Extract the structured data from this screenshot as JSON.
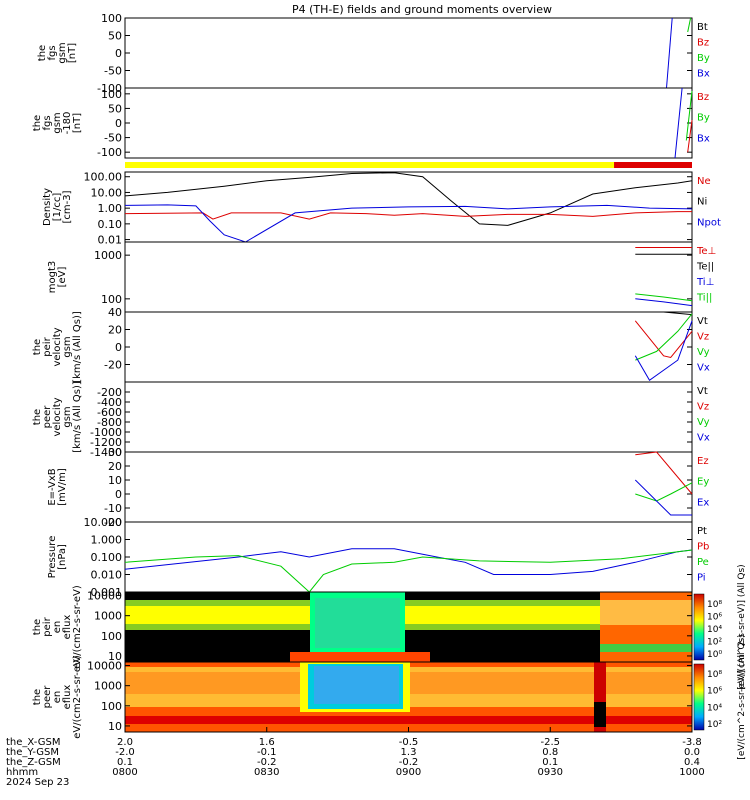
{
  "title": "P4 (TH-E) fields and ground moments overview",
  "colors": {
    "black": "#000000",
    "red": "#dd0000",
    "green": "#00cc00",
    "blue": "#0000dd",
    "yellow": "#ffff00",
    "bar_red": "#dd0000"
  },
  "chart_data": [
    {
      "type": "line",
      "panel": "fgs-gsm",
      "ylabel": [
        "the",
        "fgs",
        "gsm",
        "[nT]"
      ],
      "ylim": [
        -100,
        100
      ],
      "ticks": [
        "100",
        "50",
        "0",
        "-50",
        "-100"
      ],
      "legend": [
        {
          "name": "Bt",
          "color": "black"
        },
        {
          "name": "Bz",
          "color": "red"
        },
        {
          "name": "By",
          "color": "green"
        },
        {
          "name": "Bx",
          "color": "blue"
        }
      ],
      "series": [
        {
          "name": "Bx",
          "color": "blue",
          "x": [
            3.82,
            3.86
          ],
          "y": [
            -100,
            100
          ]
        },
        {
          "name": "By",
          "color": "green",
          "x": [
            3.97,
            3.99
          ],
          "y": [
            60,
            100
          ]
        }
      ]
    },
    {
      "type": "line",
      "panel": "fgs-gsm-dsl",
      "ylabel": [
        "the",
        "fgs",
        "gsm",
        "-180",
        "[nT]"
      ],
      "ylim": [
        -120,
        120
      ],
      "ticks": [
        "100",
        "50",
        "0",
        "-50",
        "-100"
      ],
      "legend": [
        {
          "name": "Bz",
          "color": "red"
        },
        {
          "name": "By",
          "color": "green"
        },
        {
          "name": "Bx",
          "color": "blue"
        }
      ],
      "series": [
        {
          "name": "Bx",
          "color": "blue",
          "x": [
            3.88,
            3.93
          ],
          "y": [
            -120,
            120
          ]
        },
        {
          "name": "Bz",
          "color": "red",
          "x": [
            3.97,
            4.0
          ],
          "y": [
            -100,
            10
          ]
        },
        {
          "name": "By",
          "color": "green",
          "x": [
            3.96,
            4.0
          ],
          "y": [
            -60,
            110
          ]
        }
      ]
    },
    {
      "type": "bar",
      "panel": "mode-bar",
      "segments": [
        {
          "from": 0,
          "to": 3.45,
          "color": "yellow"
        },
        {
          "from": 3.45,
          "to": 4.0,
          "color": "bar_red"
        }
      ]
    },
    {
      "type": "line",
      "panel": "density",
      "ylabel": [
        "Density",
        "[1/cc]",
        "[cm-3]"
      ],
      "scale": "log",
      "ylim": [
        0.007,
        200
      ],
      "ticks": [
        "100.00",
        "10.00",
        "1.00",
        "0.10",
        "0.01"
      ],
      "legend": [
        {
          "name": "Ne",
          "color": "red"
        },
        {
          "name": "Ni",
          "color": "black"
        },
        {
          "name": "Npot",
          "color": "blue"
        }
      ],
      "series": [
        {
          "name": "Ni",
          "color": "black",
          "x": [
            0,
            0.3,
            0.7,
            1.0,
            1.3,
            1.6,
            1.9,
            2.1,
            2.3,
            2.5,
            2.7,
            3.0,
            3.3,
            3.6,
            3.9,
            4.0
          ],
          "y": [
            6,
            10,
            25,
            55,
            90,
            160,
            180,
            100,
            3,
            0.1,
            0.08,
            0.5,
            8,
            20,
            40,
            55
          ]
        },
        {
          "name": "Ne",
          "color": "red",
          "x": [
            0,
            0.55,
            0.62,
            0.75,
            1.1,
            1.3,
            1.45,
            1.7,
            1.9,
            2.1,
            2.4,
            2.7,
            3.0,
            3.3,
            3.6,
            3.9,
            4.0
          ],
          "y": [
            0.45,
            0.5,
            0.2,
            0.5,
            0.5,
            0.2,
            0.5,
            0.45,
            0.35,
            0.45,
            0.3,
            0.4,
            0.4,
            0.3,
            0.5,
            0.6,
            0.6
          ]
        },
        {
          "name": "Npot",
          "color": "blue",
          "x": [
            0,
            0.3,
            0.5,
            0.6,
            0.7,
            0.85,
            1.2,
            1.6,
            2.0,
            2.4,
            2.7,
            3.0,
            3.4,
            3.7,
            4.0
          ],
          "y": [
            1.5,
            1.6,
            1.4,
            0.15,
            0.02,
            0.007,
            0.5,
            1.0,
            1.2,
            1.3,
            0.9,
            1.2,
            1.5,
            1.0,
            0.9
          ]
        }
      ]
    },
    {
      "type": "line",
      "panel": "temperature",
      "ylabel": [
        "mogt3",
        "[eV]"
      ],
      "scale": "log",
      "ylim": [
        50,
        2000
      ],
      "ticks": [
        "1000",
        "100"
      ],
      "legend": [
        {
          "name": "Te⊥",
          "color": "red"
        },
        {
          "name": "Te||",
          "color": "black"
        },
        {
          "name": "Ti⊥",
          "color": "blue"
        },
        {
          "name": "Ti||",
          "color": "green"
        }
      ],
      "series": [
        {
          "name": "Te⊥",
          "color": "red",
          "x": [
            3.6,
            4.0
          ],
          "y": [
            1500,
            1500
          ]
        },
        {
          "name": "Te||",
          "color": "black",
          "x": [
            3.6,
            4.0
          ],
          "y": [
            1050,
            1050
          ]
        },
        {
          "name": "Ti||",
          "color": "green",
          "x": [
            3.6,
            3.8,
            4.0
          ],
          "y": [
            130,
            110,
            90
          ]
        },
        {
          "name": "Ti⊥",
          "color": "blue",
          "x": [
            3.6,
            3.8,
            4.0
          ],
          "y": [
            100,
            85,
            70
          ]
        }
      ]
    },
    {
      "type": "line",
      "panel": "peir-velocity",
      "ylabel": [
        "the",
        "peir",
        "velocity",
        "gsm",
        "[km/s (All Qs)]"
      ],
      "ylim": [
        -40,
        40
      ],
      "ticks": [
        "40",
        "20",
        "0",
        "-20"
      ],
      "legend": [
        {
          "name": "Vt",
          "color": "black"
        },
        {
          "name": "Vz",
          "color": "red"
        },
        {
          "name": "Vy",
          "color": "green"
        },
        {
          "name": "Vx",
          "color": "blue"
        }
      ],
      "series": [
        {
          "name": "Vt",
          "color": "black",
          "x": [
            3.6,
            3.8,
            4.0
          ],
          "y": [
            40,
            40,
            37
          ]
        },
        {
          "name": "Vz",
          "color": "red",
          "x": [
            3.6,
            3.8,
            3.85,
            4.0
          ],
          "y": [
            30,
            -10,
            -12,
            18
          ]
        },
        {
          "name": "Vy",
          "color": "green",
          "x": [
            3.6,
            3.75,
            3.9,
            4.0
          ],
          "y": [
            -15,
            -5,
            18,
            38
          ]
        },
        {
          "name": "Vx",
          "color": "blue",
          "x": [
            3.6,
            3.7,
            3.9,
            4.0
          ],
          "y": [
            -10,
            -38,
            -15,
            30
          ]
        }
      ]
    },
    {
      "type": "line",
      "panel": "peer-velocity",
      "ylabel": [
        "the",
        "peer",
        "velocity",
        "gsm",
        "[km/s (All Qs)]"
      ],
      "ylim": [
        -1400,
        0
      ],
      "ticks": [
        "-200",
        "-400",
        "-600",
        "-800",
        "-1000",
        "-1200",
        "-1400"
      ],
      "legend": [
        {
          "name": "Vt",
          "color": "black"
        },
        {
          "name": "Vz",
          "color": "red"
        },
        {
          "name": "Vy",
          "color": "green"
        },
        {
          "name": "Vx",
          "color": "blue"
        }
      ],
      "series": []
    },
    {
      "type": "line",
      "panel": "efield",
      "ylabel": [
        "E=-VxB",
        "[mV/m]"
      ],
      "ylim": [
        -20,
        30
      ],
      "ticks": [
        "30",
        "20",
        "10",
        "0",
        "-10",
        "-20"
      ],
      "legend": [
        {
          "name": "Ez",
          "color": "red"
        },
        {
          "name": "Ey",
          "color": "green"
        },
        {
          "name": "Ex",
          "color": "blue"
        }
      ],
      "series": [
        {
          "name": "Ez",
          "color": "red",
          "x": [
            3.6,
            3.75,
            4.0
          ],
          "y": [
            28,
            30,
            0
          ]
        },
        {
          "name": "Ey",
          "color": "green",
          "x": [
            3.6,
            3.75,
            3.85,
            4.0
          ],
          "y": [
            0,
            -5,
            0,
            8
          ]
        },
        {
          "name": "Ex",
          "color": "blue",
          "x": [
            3.6,
            3.7,
            3.85,
            4.0
          ],
          "y": [
            10,
            0,
            -15,
            -15
          ]
        }
      ]
    },
    {
      "type": "line",
      "panel": "pressure",
      "ylabel": [
        "Pressure",
        "[nPa]"
      ],
      "scale": "log",
      "ylim": [
        0.001,
        10
      ],
      "ticks": [
        "10.000",
        "1.000",
        "0.100",
        "0.010",
        "0.001"
      ],
      "legend": [
        {
          "name": "Pt",
          "color": "black"
        },
        {
          "name": "Pb",
          "color": "red"
        },
        {
          "name": "Pe",
          "color": "green"
        },
        {
          "name": "Pi",
          "color": "blue"
        }
      ],
      "series": [
        {
          "name": "Pi",
          "color": "blue",
          "x": [
            0,
            0.8,
            1.1,
            1.3,
            1.6,
            1.9,
            2.2,
            2.4,
            2.6,
            2.8,
            3.0,
            3.3,
            3.6,
            3.9,
            4.0
          ],
          "y": [
            0.02,
            0.1,
            0.2,
            0.1,
            0.3,
            0.3,
            0.1,
            0.05,
            0.01,
            0.01,
            0.01,
            0.015,
            0.05,
            0.2,
            0.25
          ]
        },
        {
          "name": "Pe",
          "color": "green",
          "x": [
            0,
            0.5,
            0.8,
            1.1,
            1.3,
            1.4,
            1.6,
            1.9,
            2.1,
            2.5,
            3.0,
            3.5,
            3.9,
            4.0
          ],
          "y": [
            0.05,
            0.1,
            0.12,
            0.03,
            0.001,
            0.01,
            0.04,
            0.05,
            0.1,
            0.06,
            0.05,
            0.08,
            0.2,
            0.25
          ]
        }
      ]
    },
    {
      "type": "heatmap",
      "panel": "peir-en-eflux",
      "ylabel": [
        "the",
        "peir",
        "en",
        "eflux",
        "eV/(cm2-s-sr-eV)"
      ],
      "scale": "log",
      "ylim": [
        5,
        15000
      ],
      "ticks": [
        "10000",
        "1000",
        "100",
        "10"
      ],
      "colorbar": {
        "ticks": [
          "10⁸",
          "10⁶",
          "10⁴",
          "10²",
          "10⁰"
        ],
        "label": "[eV/(cm^2-s-sr-eV)] (All Qs)"
      }
    },
    {
      "type": "heatmap",
      "panel": "peer-en-eflux",
      "ylabel": [
        "the",
        "peer",
        "en",
        "eflux",
        "eV/(cm2-s-sr-eV)"
      ],
      "scale": "log",
      "ylim": [
        5,
        15000
      ],
      "ticks": [
        "10000",
        "1000",
        "100",
        "10"
      ],
      "colorbar": {
        "ticks": [
          "10⁸",
          "10⁶",
          "10⁴",
          "10²"
        ],
        "label": "[eV/(cm^2-s-sr-eV)] (All Qs)"
      }
    }
  ],
  "xaxis": {
    "rows": [
      {
        "label": "the_X-GSM",
        "values": [
          "2.0",
          "1.6",
          "-0.5",
          "-2.5",
          "-3.8"
        ]
      },
      {
        "label": "the_Y-GSM",
        "values": [
          "-2.0",
          "-0.1",
          "1.3",
          "0.8",
          "0.0"
        ]
      },
      {
        "label": "the_Z-GSM",
        "values": [
          "0.1",
          "-0.2",
          "-0.2",
          "0.1",
          "0.4"
        ]
      },
      {
        "label": "hhmm",
        "values": [
          "0800",
          "0830",
          "0900",
          "0930",
          "1000"
        ]
      }
    ],
    "date": "2024 Sep 23",
    "range": [
      0,
      4
    ]
  }
}
